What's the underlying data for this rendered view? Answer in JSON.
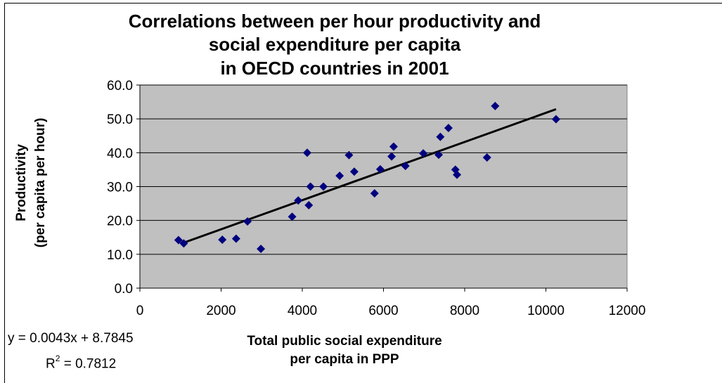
{
  "chart_data": {
    "type": "scatter",
    "title_lines": [
      "Correlations between per hour productivity and",
      "social expenditure per capita",
      "in OECD countries in 2001"
    ],
    "ylabel_lines": [
      "Productivity",
      "(per capita per hour)"
    ],
    "xlabel_lines": [
      "Total public social expenditure",
      "per capita in PPP"
    ],
    "xlim": [
      0,
      12000
    ],
    "ylim": [
      0,
      60
    ],
    "x_ticks": [
      "0",
      "2000",
      "4000",
      "6000",
      "8000",
      "10000",
      "12000"
    ],
    "y_ticks": [
      "0.0",
      "10.0",
      "20.0",
      "30.0",
      "40.0",
      "50.0",
      "60.0"
    ],
    "grid": "horizontal",
    "plot_background": "#c0c0c0",
    "marker_color": "#00007f",
    "trendline_color": "#000000",
    "points": [
      {
        "x": 950,
        "y": 14.2
      },
      {
        "x": 1080,
        "y": 13.2
      },
      {
        "x": 2030,
        "y": 14.3
      },
      {
        "x": 2370,
        "y": 14.6
      },
      {
        "x": 2650,
        "y": 19.7
      },
      {
        "x": 2980,
        "y": 11.6
      },
      {
        "x": 3750,
        "y": 21.1
      },
      {
        "x": 3900,
        "y": 25.9
      },
      {
        "x": 4120,
        "y": 40.0
      },
      {
        "x": 4160,
        "y": 24.5
      },
      {
        "x": 4200,
        "y": 30.0
      },
      {
        "x": 4520,
        "y": 30.0
      },
      {
        "x": 4920,
        "y": 33.2
      },
      {
        "x": 5150,
        "y": 39.3
      },
      {
        "x": 5280,
        "y": 34.4
      },
      {
        "x": 5780,
        "y": 28.0
      },
      {
        "x": 5920,
        "y": 35.1
      },
      {
        "x": 6200,
        "y": 38.9
      },
      {
        "x": 6250,
        "y": 41.8
      },
      {
        "x": 6540,
        "y": 36.1
      },
      {
        "x": 6980,
        "y": 39.8
      },
      {
        "x": 7360,
        "y": 39.4
      },
      {
        "x": 7400,
        "y": 44.7
      },
      {
        "x": 7600,
        "y": 47.3
      },
      {
        "x": 7770,
        "y": 35.0
      },
      {
        "x": 7810,
        "y": 33.5
      },
      {
        "x": 8550,
        "y": 38.6
      },
      {
        "x": 8750,
        "y": 53.8
      },
      {
        "x": 10250,
        "y": 49.9
      }
    ],
    "trendline": {
      "x_start": 1000,
      "x_end": 10250,
      "slope": 0.0043,
      "intercept": 8.7845
    },
    "equation_text": "y = 0.0043x + 8.7845",
    "r2_label": "R",
    "r2_sup": "2",
    "r2_value_text": " = 0.7812"
  }
}
